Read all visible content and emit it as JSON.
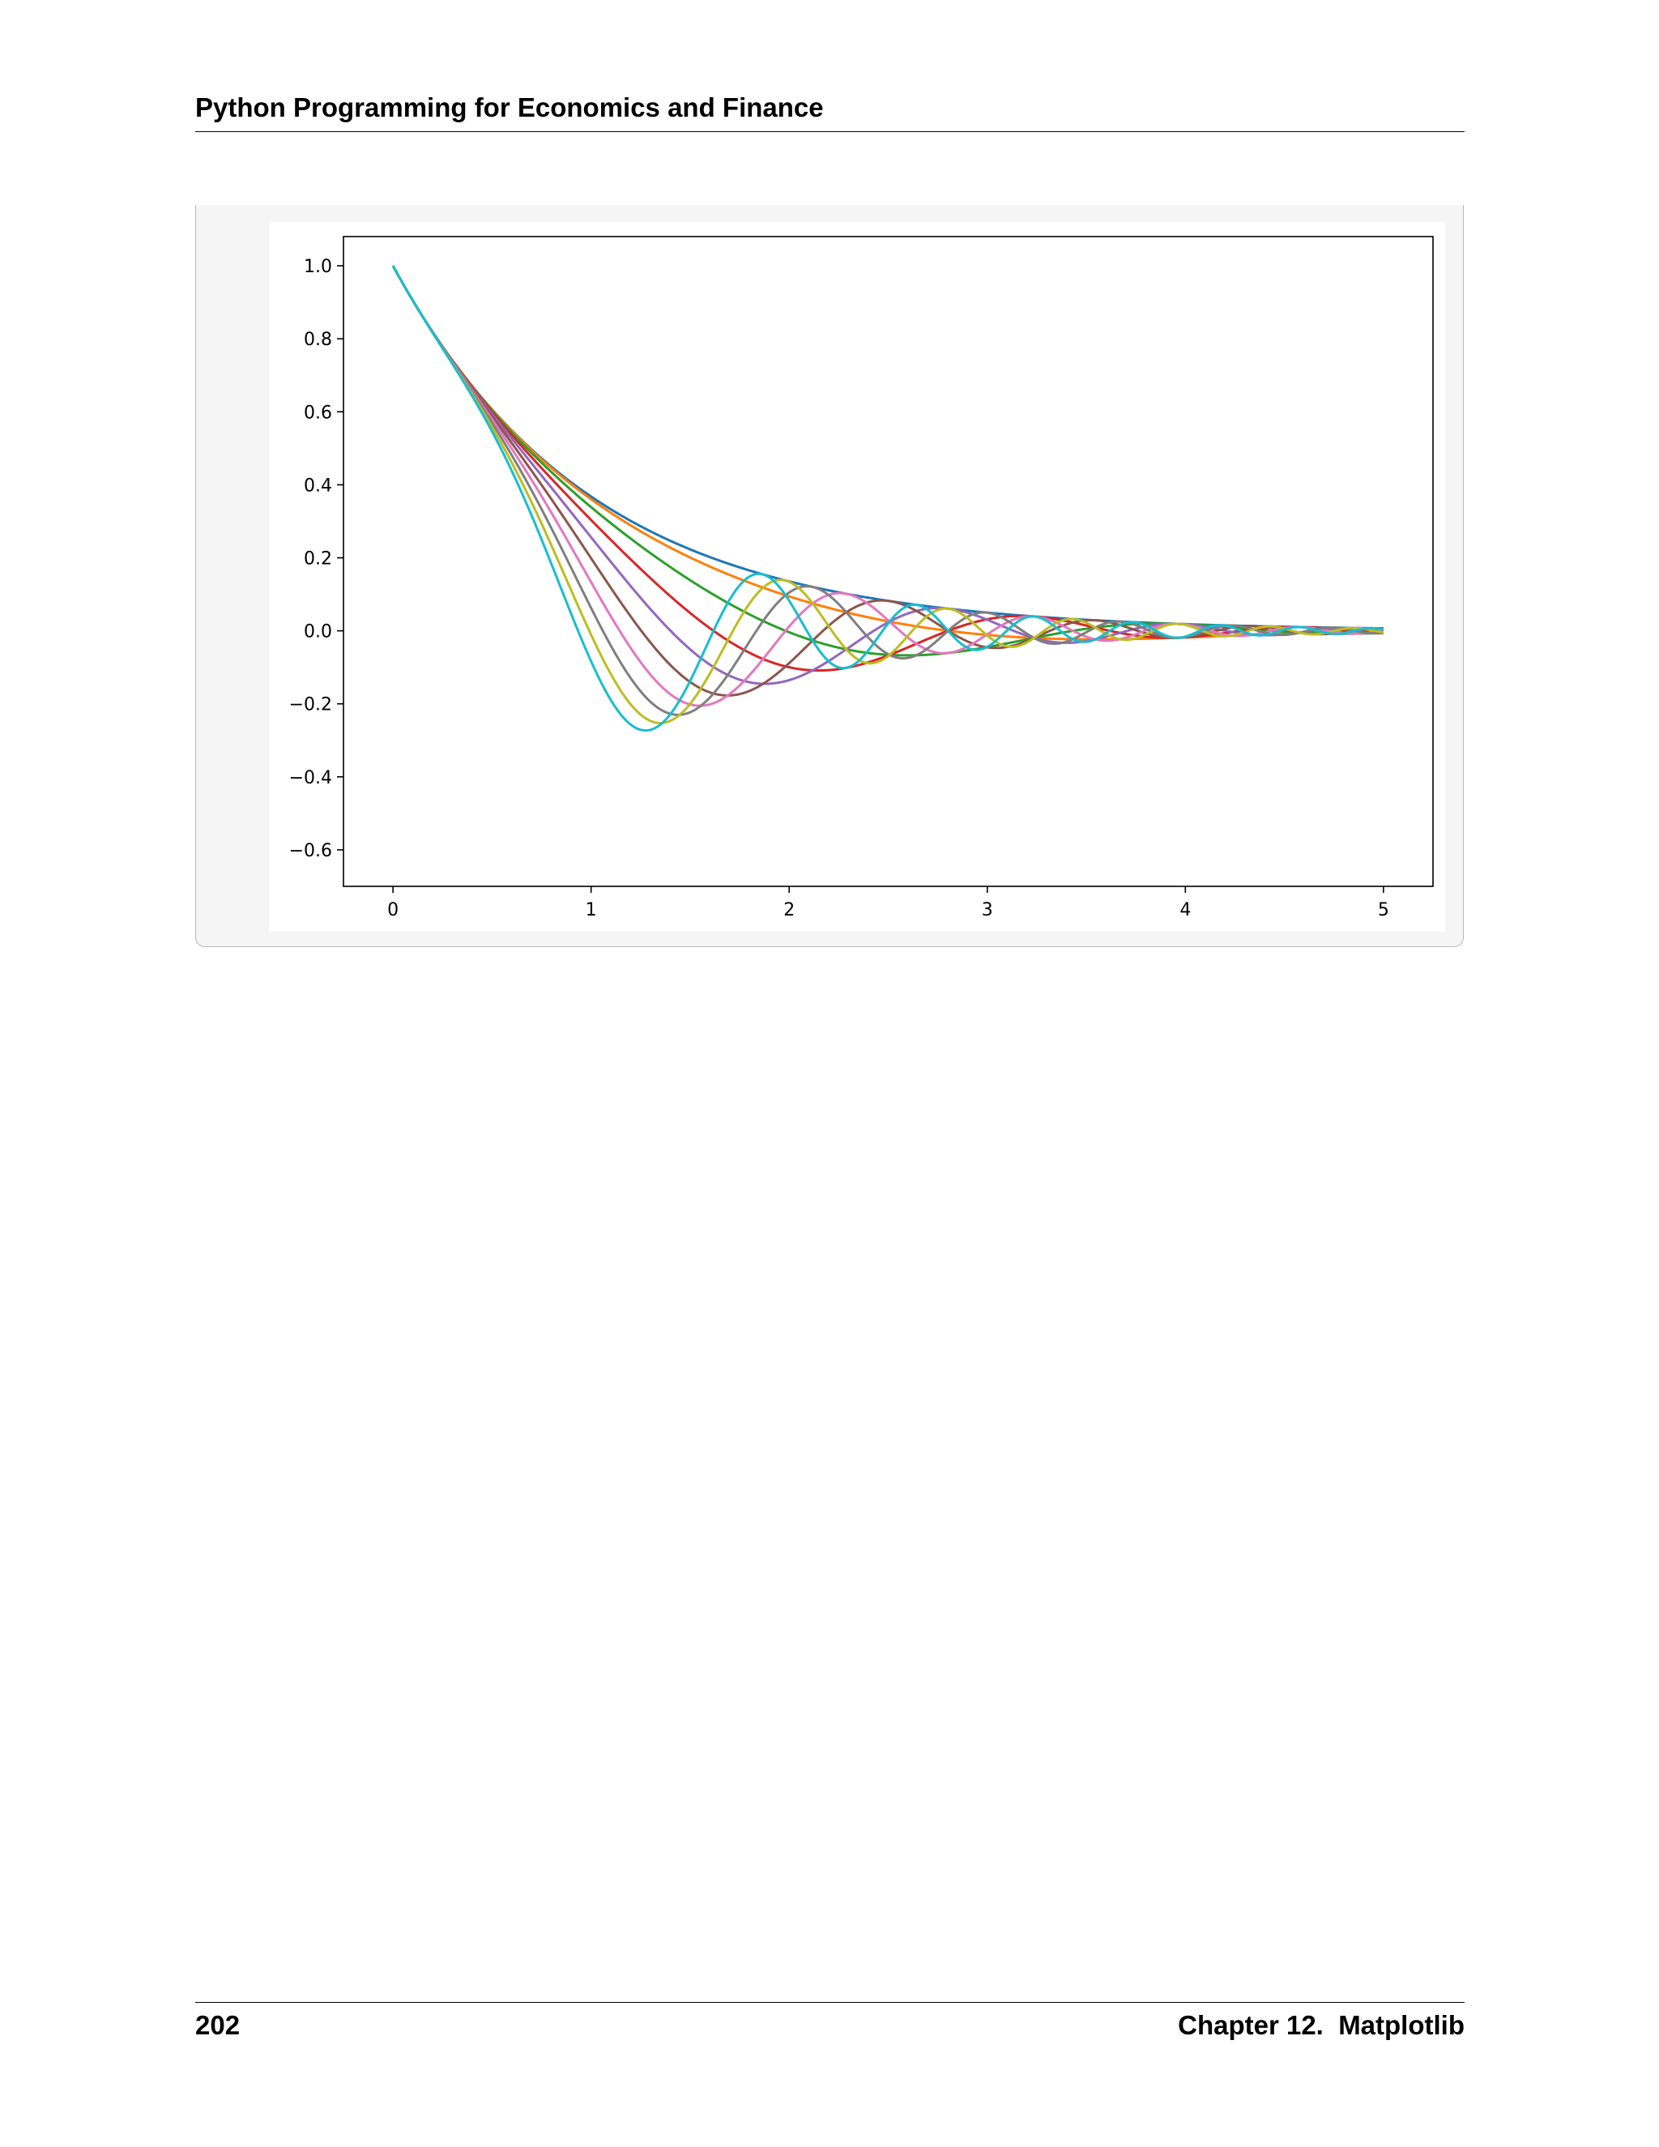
{
  "header": {
    "title": "Python Programming for Economics and Finance"
  },
  "footer": {
    "page_number": "202",
    "chapter": "Chapter 12.  Matplotlib"
  },
  "chart_data": {
    "type": "line",
    "title": "",
    "xlabel": "",
    "ylabel": "",
    "xlim": [
      -0.25,
      5.25
    ],
    "ylim": [
      -0.7,
      1.08
    ],
    "xticks": [
      "0",
      "1",
      "2",
      "3",
      "4",
      "5"
    ],
    "yticks": [
      "−0.6",
      "−0.4",
      "−0.2",
      "0.0",
      "0.2",
      "0.4",
      "0.6",
      "0.8",
      "1.0"
    ],
    "function": "y = cos(a·x²) · exp(−x)",
    "x_range": [
      0,
      5
    ],
    "legend": "none",
    "grid": false,
    "series": [
      {
        "a": 0.0,
        "color": "#1f77b4"
      },
      {
        "a": 0.2,
        "color": "#ff7f0e"
      },
      {
        "a": 0.4,
        "color": "#2ca02c"
      },
      {
        "a": 0.6,
        "color": "#d62728"
      },
      {
        "a": 0.8,
        "color": "#9467bd"
      },
      {
        "a": 1.0,
        "color": "#8c564b"
      },
      {
        "a": 1.2,
        "color": "#e377c2"
      },
      {
        "a": 1.4,
        "color": "#7f7f7f"
      },
      {
        "a": 1.6,
        "color": "#bcbd22"
      },
      {
        "a": 1.8,
        "color": "#17becf"
      }
    ]
  }
}
